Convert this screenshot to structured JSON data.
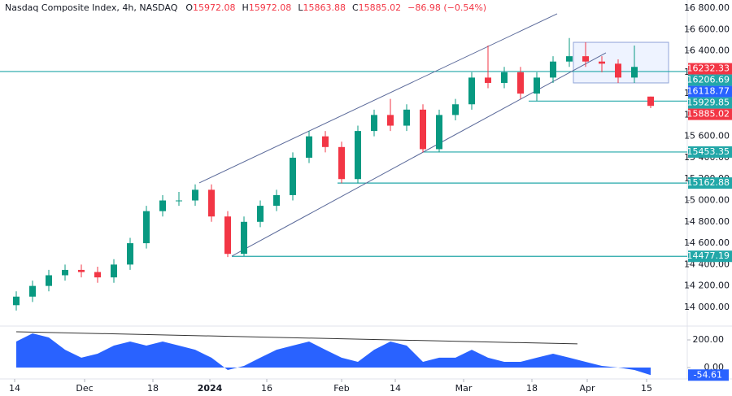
{
  "header": {
    "title": "Nasdaq Composite Index, 4h, NASDAQ",
    "ohlc": [
      {
        "key": "O",
        "value": "15972.08"
      },
      {
        "key": "H",
        "value": "15972.08"
      },
      {
        "key": "L",
        "value": "15863.88"
      },
      {
        "key": "C",
        "value": "15885.02"
      }
    ],
    "change": "−86.98 (−0.54%)"
  },
  "chart_data": [
    {
      "type": "candlestick",
      "up_color": "#089981",
      "down_color": "#f23645",
      "x": [
        2,
        4,
        6,
        8,
        10,
        12,
        14,
        16,
        18,
        20,
        22,
        24,
        26,
        28,
        30,
        32,
        34,
        36,
        38,
        40,
        42,
        44,
        46,
        48,
        50,
        52,
        54,
        56,
        58,
        60,
        62,
        64,
        66,
        68,
        70,
        72,
        74,
        76,
        78,
        80
      ],
      "open": [
        14020,
        14100,
        14200,
        14300,
        14350,
        14330,
        14280,
        14400,
        14600,
        14900,
        15000,
        15000,
        15100,
        14850,
        14500,
        14800,
        14950,
        15050,
        15400,
        15600,
        15500,
        15200,
        15650,
        15800,
        15700,
        15850,
        15480,
        15800,
        15900,
        16150,
        16100,
        16200,
        16000,
        16150,
        16300,
        16350,
        16300,
        16280,
        16150,
        15972.08
      ],
      "high": [
        14150,
        14250,
        14350,
        14400,
        14400,
        14380,
        14450,
        14650,
        14950,
        15050,
        15080,
        15150,
        15150,
        14900,
        14850,
        15000,
        15100,
        15450,
        15650,
        15650,
        15550,
        15700,
        15850,
        15950,
        15900,
        15900,
        15850,
        15950,
        16200,
        16450,
        16250,
        16250,
        16200,
        16350,
        16520,
        16480,
        16350,
        16320,
        16450,
        15972.08
      ],
      "low": [
        13970,
        14050,
        14150,
        14250,
        14280,
        14230,
        14230,
        14350,
        14550,
        14850,
        14950,
        14950,
        14800,
        14470,
        14480,
        14750,
        14900,
        15000,
        15350,
        15450,
        15160,
        15160,
        15600,
        15650,
        15650,
        15450,
        15450,
        15750,
        15850,
        16050,
        16050,
        15950,
        15930,
        16100,
        16250,
        16250,
        16200,
        16100,
        16100,
        15863.88
      ],
      "close": [
        14100,
        14200,
        14300,
        14350,
        14330,
        14280,
        14400,
        14600,
        14900,
        15000,
        15000,
        15100,
        14850,
        14500,
        14800,
        14950,
        15050,
        15400,
        15600,
        15500,
        15200,
        15650,
        15800,
        15700,
        15850,
        15480,
        15800,
        15900,
        16150,
        16100,
        16200,
        16000,
        16150,
        16300,
        16350,
        16300,
        16280,
        16150,
        16250,
        15885.02
      ],
      "xlim": [
        0,
        84
      ],
      "ylim": [
        13832,
        16876
      ],
      "xticks": [
        {
          "value": 1.8,
          "label": "14"
        },
        {
          "value": 10.4,
          "label": "Dec"
        },
        {
          "value": 18.8,
          "label": "18"
        },
        {
          "value": 25.8,
          "label": "2024"
        },
        {
          "value": 32.8,
          "label": "16"
        },
        {
          "value": 42,
          "label": "Feb"
        },
        {
          "value": 48.6,
          "label": "14"
        },
        {
          "value": 57,
          "label": "Mar"
        },
        {
          "value": 65.4,
          "label": "18"
        },
        {
          "value": 72.2,
          "label": "Apr"
        },
        {
          "value": 79.5,
          "label": "15"
        }
      ],
      "yticks": [
        {
          "value": 14000,
          "label": "14 000.00"
        },
        {
          "value": 14200,
          "label": "14 200.00"
        },
        {
          "value": 14400,
          "label": "14 400.00"
        },
        {
          "value": 14600,
          "label": "14 600.00"
        },
        {
          "value": 14800,
          "label": "14 800.00"
        },
        {
          "value": 15000,
          "label": "15 000.00"
        },
        {
          "value": 15200,
          "label": "15 200.00"
        },
        {
          "value": 15400,
          "label": "15 400.00"
        },
        {
          "value": 15600,
          "label": "15 600.00"
        },
        {
          "value": 15800,
          "label": "15 800.00"
        },
        {
          "value": 16000,
          "label": "16 000.00"
        },
        {
          "value": 16200,
          "label": "16 200.00"
        },
        {
          "value": 16400,
          "label": "16 400.00"
        },
        {
          "value": 16600,
          "label": "16 600.00"
        },
        {
          "value": 16800,
          "label": "16 800.00"
        }
      ],
      "levels": [
        {
          "value": 16206.69,
          "start": 0
        },
        {
          "value": 15929.85,
          "start": 65
        },
        {
          "value": 15453.35,
          "start": 52
        },
        {
          "value": 15162.88,
          "start": 41.5
        },
        {
          "value": 14477.19,
          "start": 28.5
        }
      ],
      "trendlines": [
        {
          "x": [
            24.5,
            68.5
          ],
          "y": [
            15164,
            16747
          ]
        },
        {
          "x": [
            28.5,
            74.5
          ],
          "y": [
            14479,
            16382
          ]
        }
      ],
      "range_box": {
        "x": [
          70.5,
          82.2
        ],
        "y": [
          16100,
          16480
        ]
      },
      "price_tags": [
        {
          "value": 16232.33,
          "color": "#f23645"
        },
        {
          "value": 16206.69,
          "color": "#22a7a8"
        },
        {
          "value": 16118.77,
          "color": "#2962ff"
        },
        {
          "value": 15929.85,
          "color": "#22a7a8"
        },
        {
          "value": 15885.02,
          "color": "#f23645"
        },
        {
          "value": 15453.35,
          "color": "#22a7a8"
        },
        {
          "value": 15162.88,
          "color": "#22a7a8"
        },
        {
          "value": 14477.19,
          "color": "#22a7a8"
        }
      ]
    },
    {
      "type": "area",
      "color": "#2962ff",
      "x": [
        2,
        4,
        6,
        8,
        10,
        12,
        14,
        16,
        18,
        20,
        22,
        24,
        26,
        28,
        30,
        32,
        34,
        36,
        38,
        40,
        42,
        44,
        46,
        48,
        50,
        52,
        54,
        56,
        58,
        60,
        62,
        64,
        66,
        68,
        70,
        72,
        74,
        76,
        78,
        80
      ],
      "values": [
        188,
        247,
        218,
        129,
        71,
        100,
        159,
        188,
        159,
        188,
        159,
        129,
        71,
        -18,
        12,
        71,
        129,
        159,
        188,
        129,
        71,
        41,
        129,
        188,
        159,
        41,
        71,
        71,
        129,
        71,
        41,
        41,
        71,
        100,
        71,
        41,
        12,
        0,
        -18,
        -54.61
      ],
      "xlim": [
        0,
        84
      ],
      "ylim": [
        -76.5,
        276.5
      ],
      "yticks": [
        {
          "value": 200,
          "label": "200.00"
        },
        {
          "value": 0,
          "label": "0.00"
        }
      ],
      "trendline": {
        "x": [
          2,
          71
        ],
        "y": [
          259,
          171
        ]
      },
      "last_tag": {
        "value": -54.61,
        "color": "#2962ff"
      }
    }
  ]
}
